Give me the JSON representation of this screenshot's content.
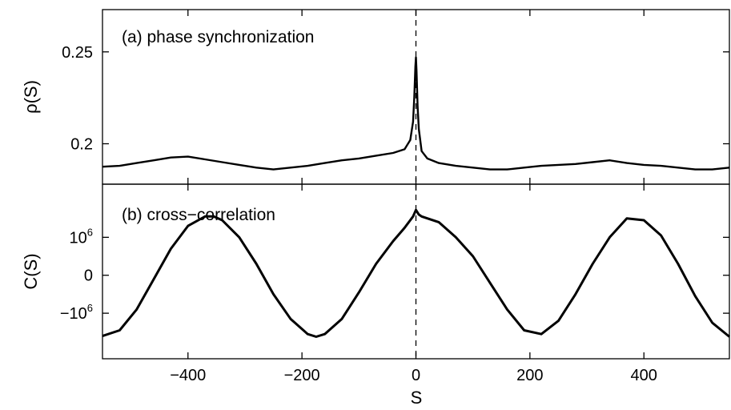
{
  "chart_data": [
    {
      "type": "line",
      "panel_label": "(a) phase synchronization",
      "ylabel": "ρ(S)",
      "xlabel": "",
      "xlim": [
        -550,
        550
      ],
      "ylim": [
        0.178,
        0.273
      ],
      "yticks": [
        {
          "value": 0.2,
          "label": "0.2"
        },
        {
          "value": 0.25,
          "label": "0.25"
        }
      ],
      "marker_line_x": 0,
      "series": [
        {
          "x": [
            -550,
            -520,
            -490,
            -460,
            -430,
            -400,
            -370,
            -340,
            -310,
            -280,
            -250,
            -220,
            -190,
            -160,
            -130,
            -100,
            -70,
            -40,
            -20,
            -10,
            -5,
            -3,
            -1,
            0,
            1,
            3,
            5,
            10,
            20,
            40,
            70,
            100,
            130,
            160,
            190,
            220,
            250,
            280,
            310,
            340,
            370,
            400,
            430,
            460,
            490,
            520,
            550
          ],
          "y": [
            0.1875,
            0.188,
            0.1895,
            0.191,
            0.1925,
            0.193,
            0.1915,
            0.19,
            0.1885,
            0.187,
            0.186,
            0.187,
            0.188,
            0.1895,
            0.191,
            0.192,
            0.1935,
            0.195,
            0.197,
            0.202,
            0.212,
            0.225,
            0.242,
            0.247,
            0.24,
            0.22,
            0.208,
            0.196,
            0.192,
            0.1895,
            0.188,
            0.187,
            0.186,
            0.186,
            0.187,
            0.188,
            0.1885,
            0.189,
            0.19,
            0.191,
            0.1895,
            0.1885,
            0.188,
            0.187,
            0.186,
            0.186,
            0.187
          ]
        }
      ]
    },
    {
      "type": "line",
      "panel_label": "(b) cross−correlation",
      "ylabel": "C(S)",
      "xlabel": "S",
      "xlim": [
        -550,
        550
      ],
      "ylim": [
        -2.2,
        2.4
      ],
      "yticks": [
        {
          "value": -1,
          "label": "−10",
          "exp": "6"
        },
        {
          "value": 0,
          "label": "0"
        },
        {
          "value": 1,
          "label": "10",
          "exp": "6"
        }
      ],
      "xticks": [
        {
          "value": -400,
          "label": "−400"
        },
        {
          "value": -200,
          "label": "−200"
        },
        {
          "value": 0,
          "label": "0"
        },
        {
          "value": 200,
          "label": "200"
        },
        {
          "value": 400,
          "label": "400"
        }
      ],
      "marker_line_x": 0,
      "series": [
        {
          "x": [
            -550,
            -520,
            -490,
            -460,
            -430,
            -400,
            -370,
            -355,
            -340,
            -310,
            -280,
            -250,
            -220,
            -190,
            -175,
            -160,
            -130,
            -100,
            -70,
            -40,
            -20,
            -10,
            -5,
            0,
            5,
            10,
            20,
            40,
            70,
            100,
            130,
            160,
            190,
            220,
            250,
            280,
            310,
            340,
            370,
            400,
            430,
            460,
            490,
            520,
            550
          ],
          "y": [
            -1.6,
            -1.45,
            -0.9,
            -0.1,
            0.7,
            1.3,
            1.55,
            1.55,
            1.45,
            1.0,
            0.3,
            -0.5,
            -1.15,
            -1.55,
            -1.62,
            -1.55,
            -1.15,
            -0.45,
            0.3,
            0.9,
            1.25,
            1.45,
            1.55,
            1.72,
            1.6,
            1.55,
            1.5,
            1.4,
            1.0,
            0.5,
            -0.2,
            -0.9,
            -1.45,
            -1.55,
            -1.2,
            -0.5,
            0.3,
            1.0,
            1.5,
            1.45,
            1.05,
            0.3,
            -0.55,
            -1.25,
            -1.62
          ]
        }
      ]
    }
  ]
}
